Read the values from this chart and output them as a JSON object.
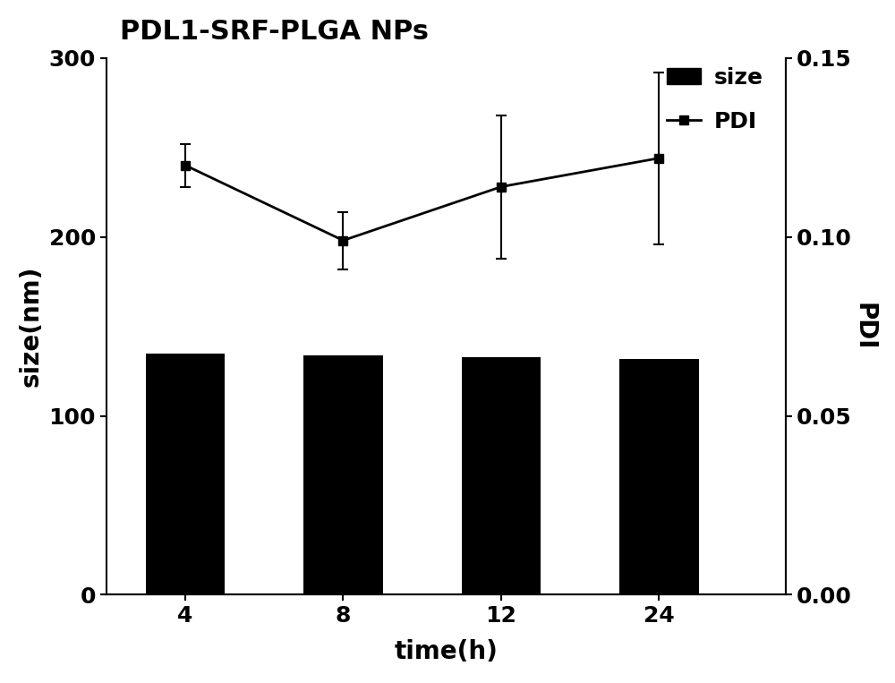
{
  "title": "PDL1-SRF-PLGA NPs",
  "xlabel": "time(h)",
  "ylabel_left": "size(nm)",
  "ylabel_right": "PDI",
  "x_labels": [
    "4",
    "8",
    "12",
    "24"
  ],
  "bar_values": [
    135,
    134,
    133,
    132
  ],
  "bar_color": "#000000",
  "bar_width": 0.5,
  "bar_yerr": [
    0,
    0,
    2,
    0
  ],
  "pdi_values": [
    0.12,
    0.099,
    0.114,
    0.122
  ],
  "pdi_yerr": [
    0.006,
    0.008,
    0.02,
    0.024
  ],
  "pdi_color": "#000000",
  "ylim_left": [
    0,
    300
  ],
  "ylim_right": [
    0.0,
    0.15
  ],
  "yticks_left": [
    0,
    100,
    200,
    300
  ],
  "yticks_right": [
    0.0,
    0.05,
    0.1,
    0.15
  ],
  "title_fontsize": 22,
  "axis_label_fontsize": 20,
  "tick_fontsize": 18,
  "legend_fontsize": 18,
  "background_color": "#ffffff"
}
